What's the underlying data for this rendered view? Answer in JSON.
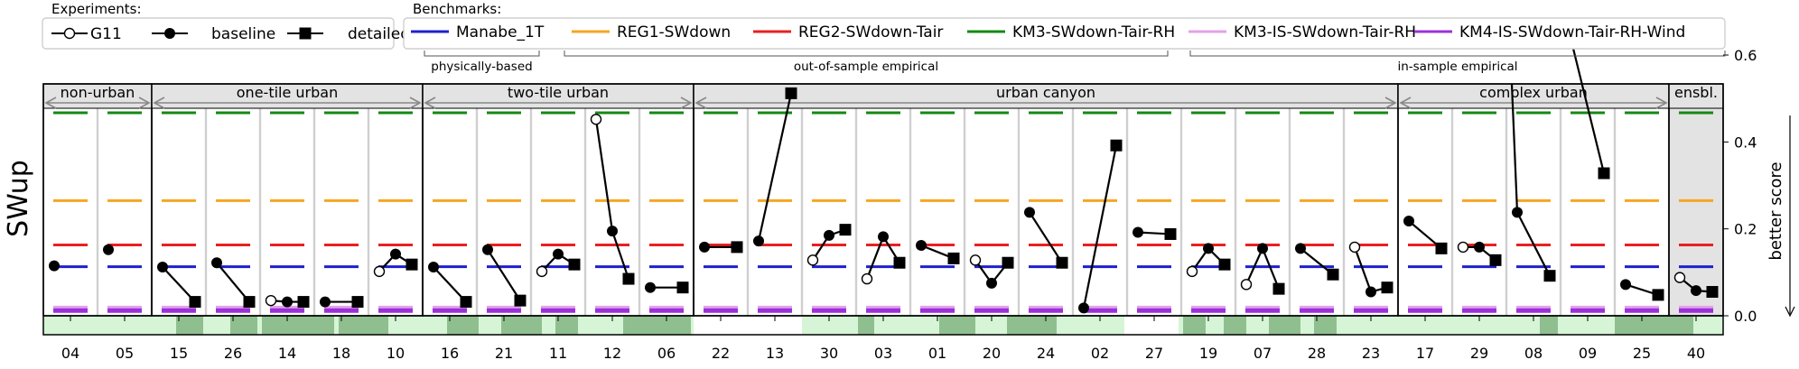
{
  "chart_data": {
    "type": "scatter",
    "ylabel": "SWup",
    "right_label": "better score",
    "ylim": [
      0,
      0.72
    ],
    "yticks": [
      "0.0",
      "0.2",
      "0.4",
      "0.6"
    ],
    "ytick_values": [
      0,
      0.2,
      0.4,
      0.6
    ],
    "experiments_title": "Experiments:",
    "experiments": [
      {
        "name": "G11",
        "marker": "open-circle"
      },
      {
        "name": "baseline",
        "marker": "circle"
      },
      {
        "name": "detailed",
        "marker": "square"
      }
    ],
    "benchmarks_title": "Benchmarks:",
    "benchmarks": [
      {
        "name": "Manabe_1T",
        "color": "#1f1fd0",
        "value": 0.113
      },
      {
        "name": "REG1-SWdown",
        "color": "#f5a623",
        "value": 0.265
      },
      {
        "name": "REG2-SWdown-Tair",
        "color": "#e82020",
        "value": 0.163
      },
      {
        "name": "KM3-SWdown-Tair-RH",
        "color": "#138a13",
        "value": 0.467
      },
      {
        "name": "KM3-IS-SWdown-Tair-RH",
        "color": "#e3a2e8",
        "value": 0.018
      },
      {
        "name": "KM4-IS-SWdown-Tair-RH-Wind",
        "color": "#9b30d9",
        "value": 0.012
      }
    ],
    "benchmark_groups": [
      "physically-based",
      "out-of-sample empirical",
      "in-sample empirical"
    ],
    "groups": [
      "non-urban",
      "one-tile urban",
      "two-tile urban",
      "urban canyon",
      "complex urban",
      "ensbl."
    ],
    "sites": [
      "04",
      "05",
      "15",
      "26",
      "14",
      "18",
      "10",
      "16",
      "21",
      "11",
      "12",
      "06",
      "22",
      "13",
      "30",
      "03",
      "01",
      "20",
      "24",
      "02",
      "27",
      "19",
      "07",
      "28",
      "23",
      "17",
      "29",
      "08",
      "09",
      "25",
      "40"
    ],
    "site_values": [
      {
        "site": "04",
        "g11": null,
        "baseline": 0.115,
        "detailed": null
      },
      {
        "site": "05",
        "g11": null,
        "baseline": 0.152,
        "detailed": null
      },
      {
        "site": "15",
        "g11": null,
        "baseline": 0.112,
        "detailed": 0.032
      },
      {
        "site": "26",
        "g11": null,
        "baseline": 0.122,
        "detailed": 0.032
      },
      {
        "site": "14",
        "g11": 0.035,
        "baseline": 0.032,
        "detailed": 0.032
      },
      {
        "site": "18",
        "g11": null,
        "baseline": 0.032,
        "detailed": 0.032
      },
      {
        "site": "10",
        "g11": 0.102,
        "baseline": 0.142,
        "detailed": 0.118
      },
      {
        "site": "16",
        "g11": null,
        "baseline": 0.112,
        "detailed": 0.032
      },
      {
        "site": "21",
        "g11": null,
        "baseline": 0.152,
        "detailed": 0.035
      },
      {
        "site": "11",
        "g11": 0.102,
        "baseline": 0.142,
        "detailed": 0.118
      },
      {
        "site": "12",
        "g11": 0.452,
        "baseline": 0.195,
        "detailed": 0.085
      },
      {
        "site": "06",
        "g11": null,
        "baseline": 0.065,
        "detailed": 0.065
      },
      {
        "site": "22",
        "g11": null,
        "baseline": 0.158,
        "detailed": 0.158
      },
      {
        "site": "13",
        "g11": null,
        "baseline": 0.172,
        "detailed": 0.512
      },
      {
        "site": "30",
        "g11": 0.128,
        "baseline": 0.185,
        "detailed": 0.198
      },
      {
        "site": "03",
        "g11": 0.085,
        "baseline": 0.182,
        "detailed": 0.122
      },
      {
        "site": "01",
        "g11": null,
        "baseline": 0.162,
        "detailed": 0.132
      },
      {
        "site": "20",
        "g11": 0.128,
        "baseline": 0.075,
        "detailed": 0.122
      },
      {
        "site": "24",
        "g11": null,
        "baseline": 0.238,
        "detailed": 0.122
      },
      {
        "site": "02",
        "g11": null,
        "baseline": 0.018,
        "detailed": 0.392
      },
      {
        "site": "27",
        "g11": null,
        "baseline": 0.192,
        "detailed": 0.188
      },
      {
        "site": "19",
        "g11": 0.102,
        "baseline": 0.155,
        "detailed": 0.118
      },
      {
        "site": "07",
        "g11": 0.072,
        "baseline": 0.155,
        "detailed": 0.062
      },
      {
        "site": "28",
        "g11": null,
        "baseline": 0.155,
        "detailed": 0.095
      },
      {
        "site": "23",
        "g11": 0.158,
        "baseline": 0.055,
        "detailed": 0.065
      },
      {
        "site": "17",
        "g11": null,
        "baseline": 0.218,
        "detailed": 0.155
      },
      {
        "site": "29",
        "g11": 0.158,
        "baseline": 0.158,
        "detailed": 0.128
      },
      {
        "site": "08",
        "g11": null,
        "baseline": 0.238,
        "detailed": 0.092
      },
      {
        "site": "09",
        "g11": null,
        "baseline": 0.632,
        "detailed": 0.328
      },
      {
        "site": "25",
        "g11": null,
        "baseline": 0.072,
        "detailed": 0.048
      },
      {
        "site": "40",
        "g11": 0.088,
        "baseline": 0.058,
        "detailed": 0.055
      }
    ],
    "offscale_lines": [
      {
        "site": "08",
        "from": 0.78,
        "to": 0.238
      }
    ],
    "grid": false,
    "legend_placement": "top"
  }
}
